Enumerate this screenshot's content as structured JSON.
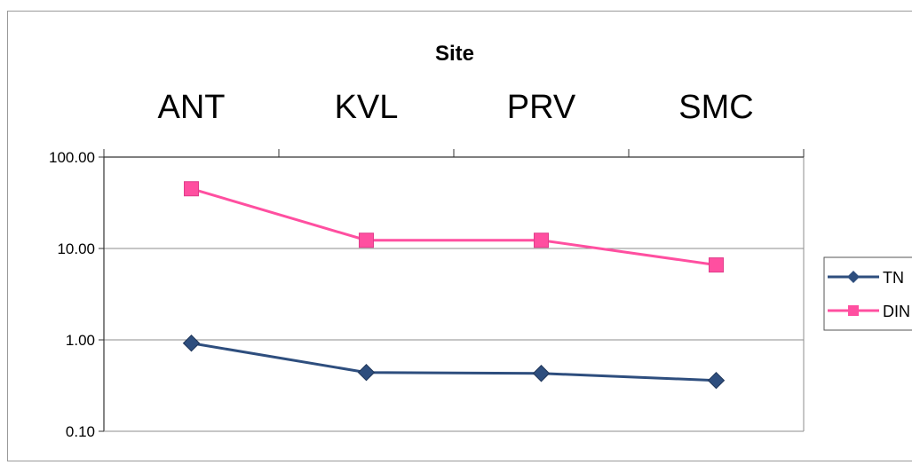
{
  "chart_data": {
    "type": "line",
    "title": "Site",
    "categories": [
      "ANT",
      "KVL",
      "PRV",
      "SMC"
    ],
    "y_scale": "log",
    "ylim": [
      0.1,
      100
    ],
    "y_ticks": [
      "100.00",
      "10.00",
      "1.00",
      "0.10"
    ],
    "y_tick_values": [
      100,
      10,
      1,
      0.1
    ],
    "x_axis_position": "top",
    "grid": "horizontal",
    "legend_position": "right",
    "series": [
      {
        "name": "TN",
        "values": [
          0.92,
          0.44,
          0.43,
          0.36
        ],
        "color": "#2e4e7e",
        "marker": "diamond"
      },
      {
        "name": "DIN",
        "values": [
          45,
          12.3,
          12.3,
          6.6
        ],
        "color": "#ff4fa0",
        "marker": "square"
      }
    ]
  }
}
